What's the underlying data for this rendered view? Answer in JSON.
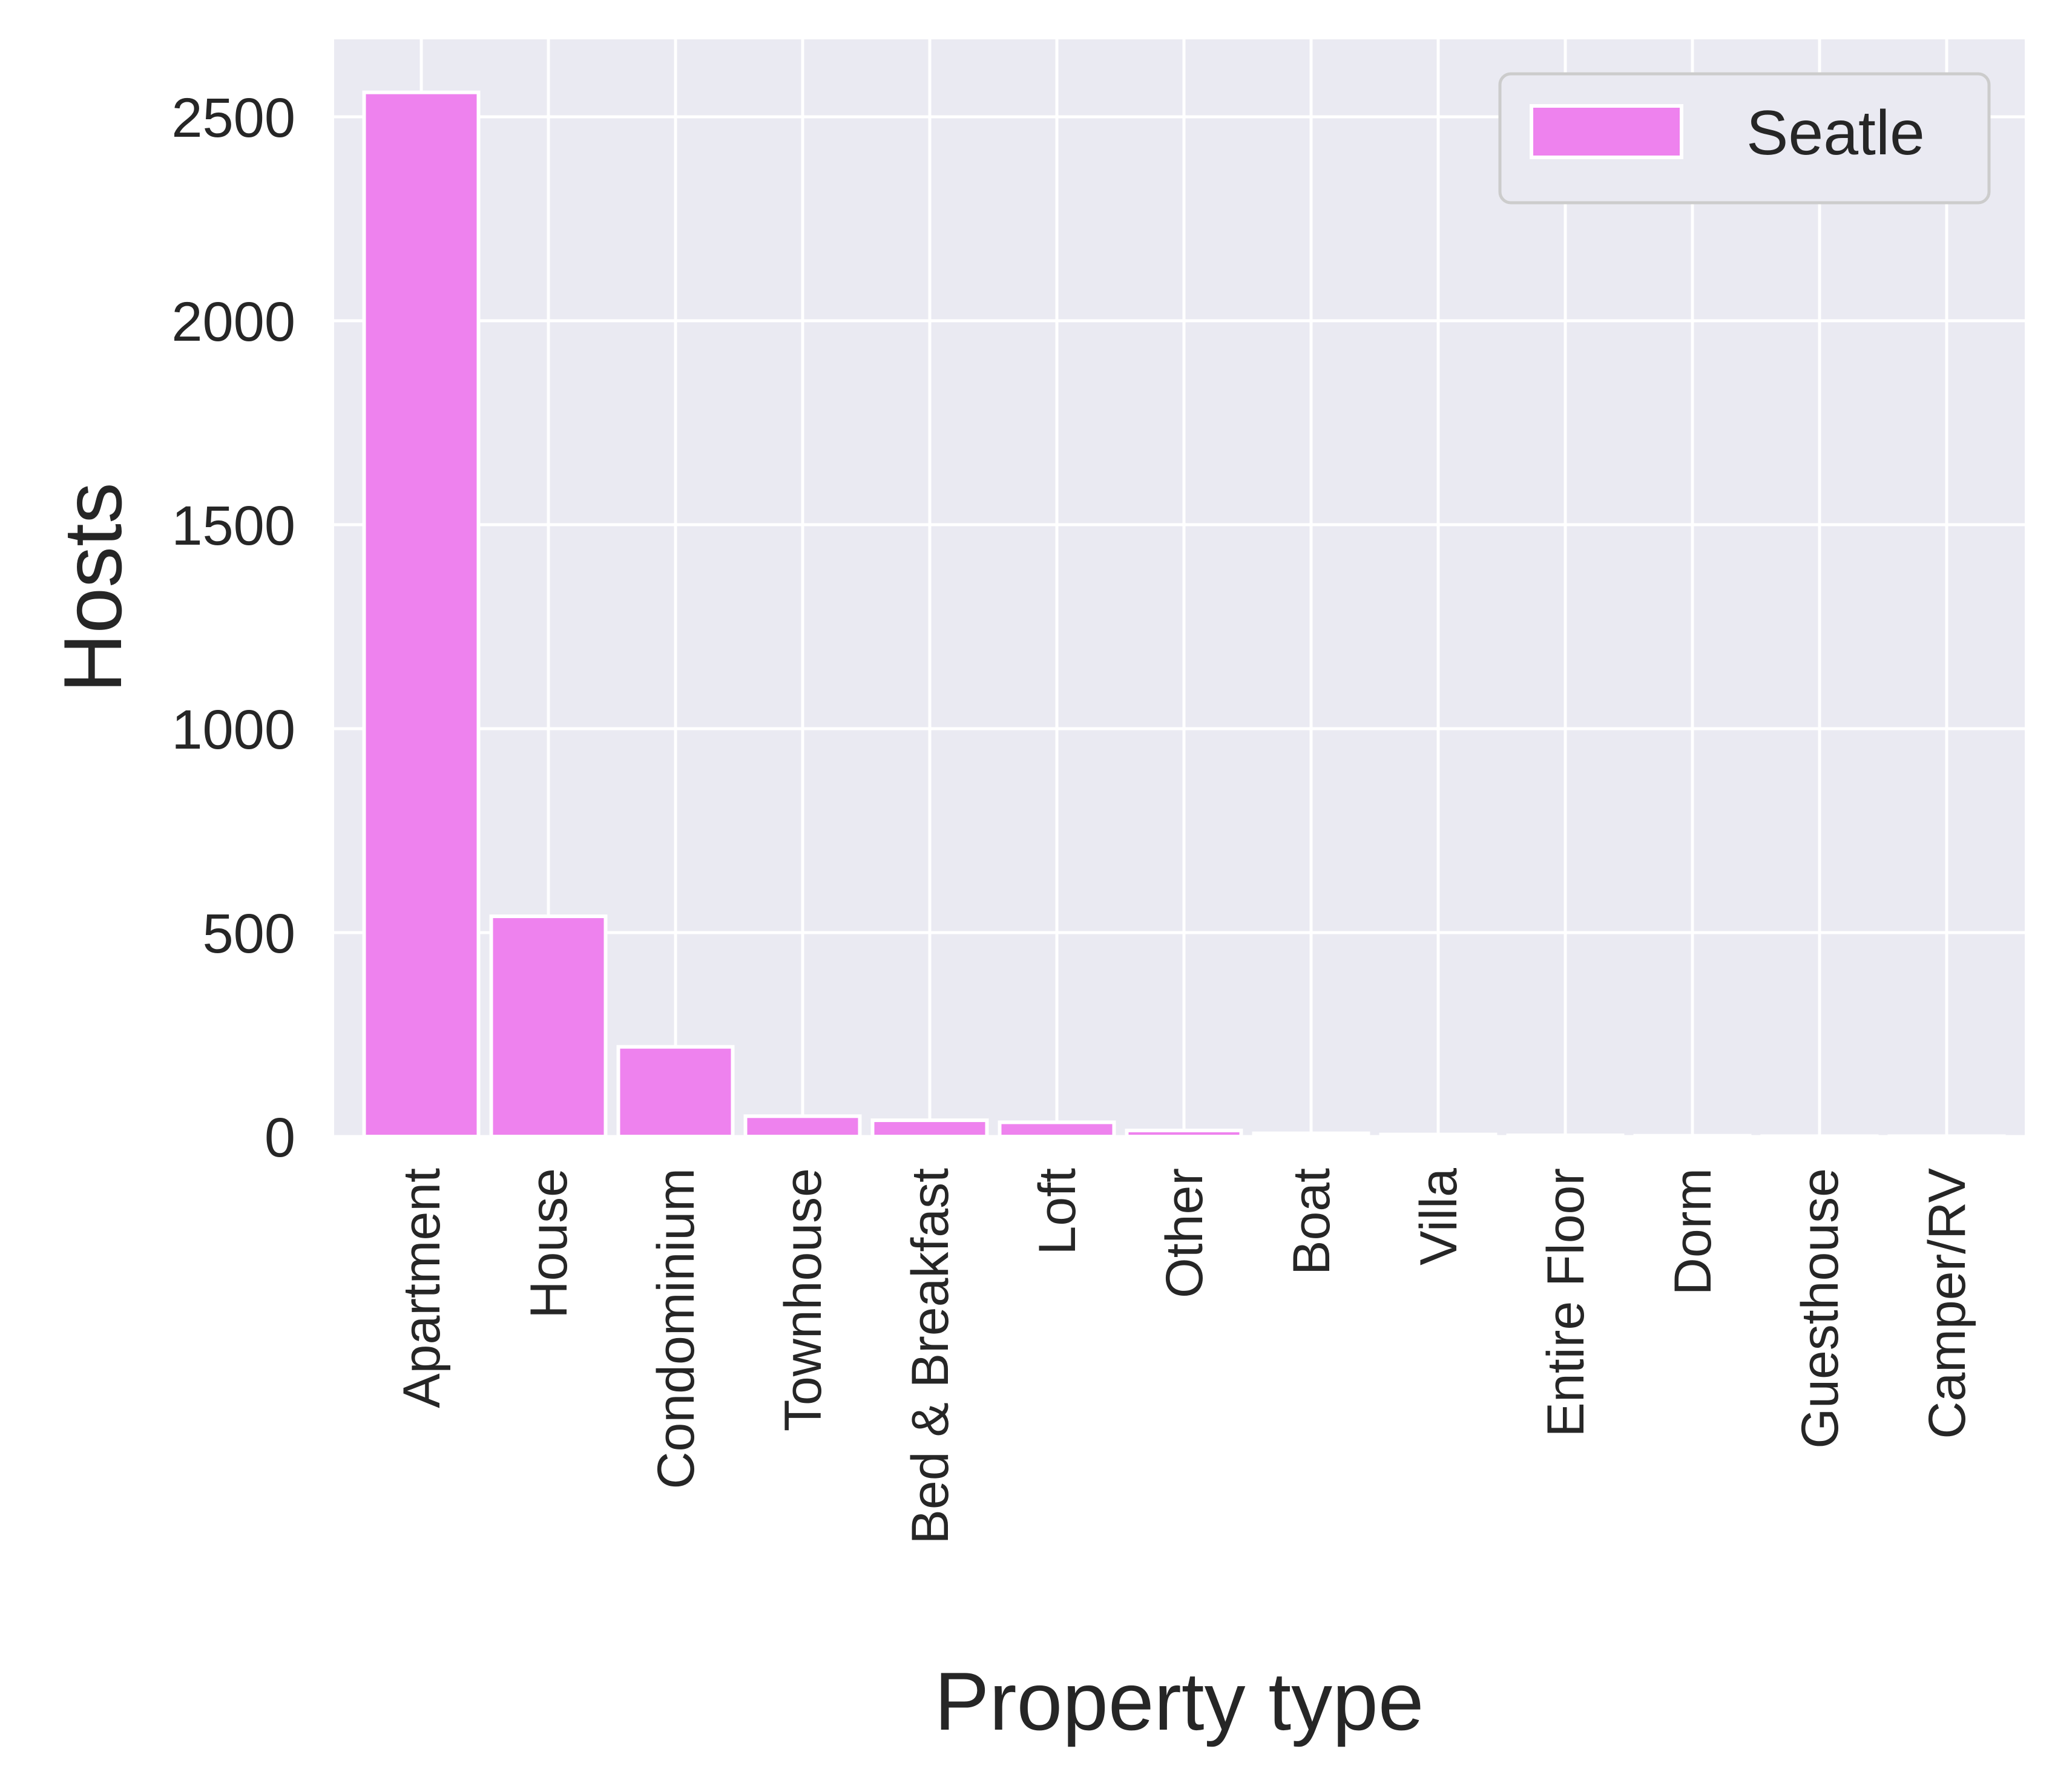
{
  "chart_data": {
    "type": "bar",
    "title": "",
    "xlabel": "Property type",
    "ylabel": "Hosts",
    "categories": [
      "Apartment",
      "House",
      "Condominium",
      "Townhouse",
      "Bed & Breakfast",
      "Loft",
      "Other",
      "Boat",
      "Villa",
      "Entire Floor",
      "Dorm",
      "Guesthouse",
      "Camper/RV"
    ],
    "series": [
      {
        "name": "Seatle",
        "values": [
          2560,
          540,
          220,
          50,
          40,
          35,
          15,
          8,
          5,
          3,
          2,
          1,
          1
        ],
        "color": "#EE82EE"
      }
    ],
    "yticks": [
      0,
      500,
      1000,
      1500,
      2000,
      2500
    ],
    "ylim": [
      0,
      2690
    ],
    "grid": true,
    "legend_position": "top-right",
    "colors": {
      "plot_background": "#EAEAF2",
      "grid": "#FFFFFF",
      "bar_edge": "#FFFFFF",
      "text": "#262626"
    }
  }
}
